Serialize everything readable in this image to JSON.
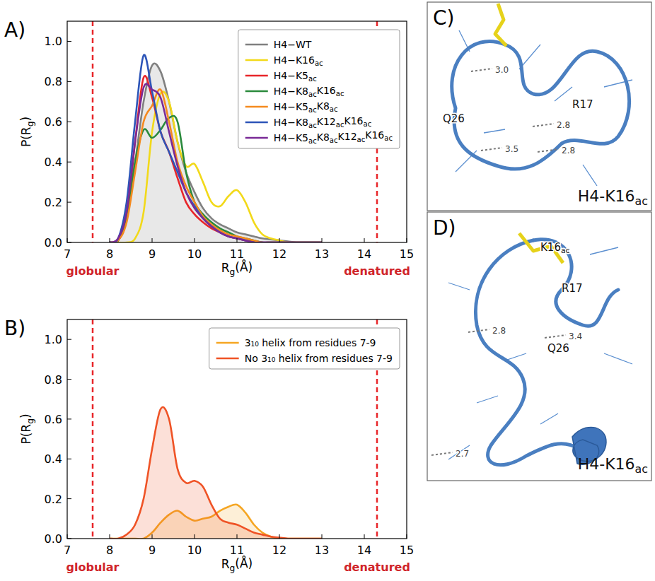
{
  "chart_data": [
    {
      "type": "line",
      "panel_label": "A)",
      "x_label": "Rg(Å)",
      "y_label": "P(Rg)",
      "xlim": [
        7,
        15
      ],
      "ylim": [
        0,
        1.1
      ],
      "xticks": [
        7,
        8,
        9,
        10,
        11,
        12,
        13,
        14,
        15
      ],
      "yticks": [
        {
          "value": 0,
          "label": "0.0"
        },
        {
          "value": 0.2,
          "label": "0.2"
        },
        {
          "value": 0.4,
          "label": "0.4"
        },
        {
          "value": 0.6,
          "label": "0.6"
        },
        {
          "value": 0.8,
          "label": "0.8"
        },
        {
          "value": 1,
          "label": "1.0"
        }
      ],
      "legend": "upper right",
      "x": [
        8.0,
        8.2,
        8.4,
        8.6,
        8.8,
        9.0,
        9.2,
        9.4,
        9.6,
        9.8,
        10.0,
        10.2,
        10.4,
        10.6,
        10.8,
        11.0,
        11.2,
        11.4,
        11.6,
        11.8,
        12.0,
        12.2,
        12.4,
        12.6,
        12.8,
        13.0
      ],
      "series": [
        {
          "name": "H4−WT",
          "color": "#808080",
          "type": "area",
          "values": [
            0,
            0.02,
            0.15,
            0.4,
            0.7,
            0.88,
            0.85,
            0.7,
            0.5,
            0.35,
            0.25,
            0.17,
            0.12,
            0.09,
            0.07,
            0.05,
            0.04,
            0.03,
            0.02,
            0.015,
            0.01,
            0.005,
            0,
            0,
            0,
            0
          ]
        },
        {
          "name": "H4−K16ac",
          "color": "#f2d91a",
          "type": "line",
          "values": [
            0,
            0,
            0,
            0.02,
            0.15,
            0.55,
            0.74,
            0.7,
            0.5,
            0.38,
            0.39,
            0.3,
            0.2,
            0.18,
            0.23,
            0.26,
            0.2,
            0.1,
            0.04,
            0.02,
            0.01,
            0,
            0,
            0,
            0,
            0
          ]
        },
        {
          "name": "H4−K5ac",
          "color": "#e8262a",
          "type": "line",
          "values": [
            0,
            0.01,
            0.12,
            0.5,
            0.82,
            0.72,
            0.55,
            0.45,
            0.32,
            0.2,
            0.14,
            0.1,
            0.07,
            0.05,
            0.03,
            0.02,
            0.01,
            0.005,
            0,
            0,
            0,
            0,
            0,
            0,
            0,
            0
          ]
        },
        {
          "name": "H4−K8acK16ac",
          "color": "#2a8a3c",
          "type": "line",
          "values": [
            0,
            0.01,
            0.12,
            0.4,
            0.56,
            0.52,
            0.56,
            0.62,
            0.6,
            0.35,
            0.2,
            0.14,
            0.1,
            0.07,
            0.05,
            0.03,
            0.02,
            0.01,
            0,
            0,
            0,
            0,
            0,
            0,
            0,
            0
          ]
        },
        {
          "name": "H4−K5acK8ac",
          "color": "#f58a1f",
          "type": "line",
          "values": [
            0,
            0.01,
            0.1,
            0.35,
            0.6,
            0.68,
            0.76,
            0.6,
            0.4,
            0.28,
            0.2,
            0.13,
            0.09,
            0.06,
            0.04,
            0.03,
            0.02,
            0.01,
            0,
            0,
            0,
            0,
            0,
            0,
            0,
            0
          ]
        },
        {
          "name": "H4−K8acK12acK16ac",
          "color": "#2d55b8",
          "type": "line",
          "values": [
            0,
            0.02,
            0.2,
            0.6,
            0.93,
            0.75,
            0.55,
            0.45,
            0.35,
            0.25,
            0.18,
            0.12,
            0.08,
            0.05,
            0.03,
            0.02,
            0.01,
            0,
            0,
            0,
            0,
            0,
            0,
            0,
            0,
            0
          ]
        },
        {
          "name": "H4−K5acK8acK12acK16ac",
          "color": "#7a2a96",
          "type": "line",
          "values": [
            0,
            0.02,
            0.15,
            0.5,
            0.77,
            0.76,
            0.72,
            0.55,
            0.38,
            0.25,
            0.17,
            0.12,
            0.08,
            0.05,
            0.03,
            0.02,
            0.01,
            0,
            0,
            0,
            0,
            0,
            0,
            0,
            0,
            0
          ]
        }
      ],
      "annotations": [
        {
          "x": 7.6,
          "label": "globular"
        },
        {
          "x": 14.3,
          "label": "denatured"
        }
      ]
    },
    {
      "type": "line",
      "panel_label": "B)",
      "x_label": "Rg(Å)",
      "y_label": "P(Rg)",
      "xlim": [
        7,
        15
      ],
      "ylim": [
        0,
        1.1
      ],
      "xticks": [
        7,
        8,
        9,
        10,
        11,
        12,
        13,
        14,
        15
      ],
      "yticks": [
        {
          "value": 0,
          "label": "0.0"
        },
        {
          "value": 0.2,
          "label": "0.2"
        },
        {
          "value": 0.4,
          "label": "0.4"
        },
        {
          "value": 0.6,
          "label": "0.6"
        },
        {
          "value": 0.8,
          "label": "0.8"
        },
        {
          "value": 1,
          "label": "1.0"
        }
      ],
      "legend": "upper right",
      "x": [
        8.0,
        8.2,
        8.4,
        8.6,
        8.8,
        9.0,
        9.2,
        9.4,
        9.6,
        9.8,
        10.0,
        10.2,
        10.4,
        10.6,
        10.8,
        11.0,
        11.2,
        11.4,
        11.6,
        11.8,
        12.0,
        12.2,
        12.4,
        12.6,
        12.8,
        13.0
      ],
      "series": [
        {
          "name": "3₁₀ helix from residues 7-9",
          "color": "#f5a623",
          "type": "area",
          "values": [
            0,
            0,
            0,
            0,
            0,
            0.03,
            0.08,
            0.12,
            0.14,
            0.11,
            0.09,
            0.1,
            0.11,
            0.14,
            0.16,
            0.17,
            0.13,
            0.07,
            0.03,
            0.01,
            0,
            0,
            0,
            0,
            0,
            0
          ]
        },
        {
          "name": "No 3₁₀ helix from residues 7-9",
          "color": "#ef5326",
          "type": "area",
          "values": [
            0,
            0,
            0.02,
            0.07,
            0.2,
            0.45,
            0.65,
            0.6,
            0.35,
            0.28,
            0.29,
            0.26,
            0.17,
            0.1,
            0.08,
            0.07,
            0.05,
            0.03,
            0.02,
            0.01,
            0.005,
            0,
            0,
            0,
            0,
            0
          ]
        }
      ],
      "annotations": [
        {
          "x": 7.6,
          "label": "globular"
        },
        {
          "x": 14.3,
          "label": "denatured"
        }
      ]
    }
  ],
  "structures": [
    {
      "panel_label": "C)",
      "title": "H4-K16ac",
      "residues": [
        "Q26",
        "R17"
      ],
      "distances": [
        "3.0",
        "2.8",
        "3.5",
        "2.8"
      ]
    },
    {
      "panel_label": "D)",
      "title": "H4-K16ac",
      "residues": [
        "K16ac",
        "R17",
        "Q26"
      ],
      "distances": [
        "2.8",
        "3.4",
        "2.7"
      ]
    }
  ]
}
